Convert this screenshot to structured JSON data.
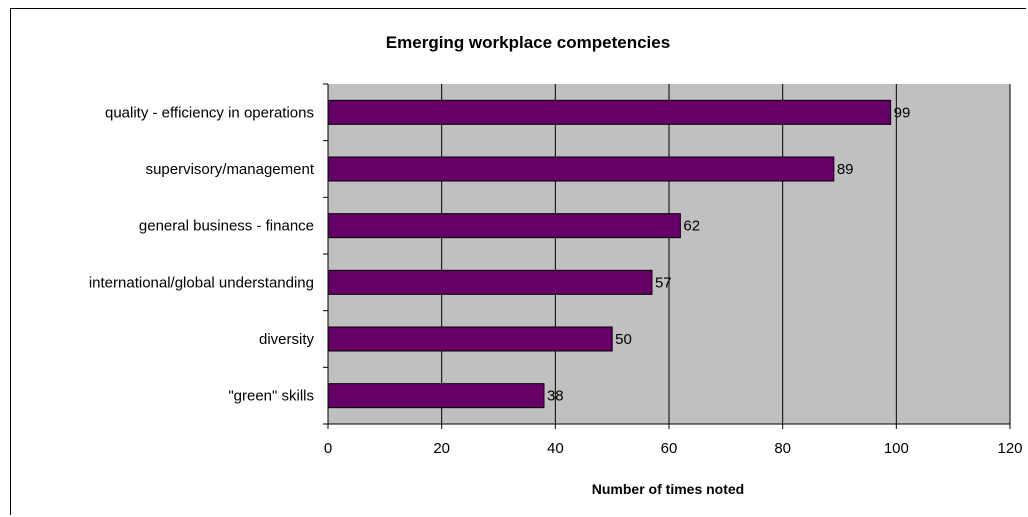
{
  "chart_data": {
    "type": "bar",
    "orientation": "horizontal",
    "title": "Emerging workplace competencies",
    "xlabel": "Number of times  noted",
    "ylabel": "",
    "categories": [
      "quality - efficiency in operations",
      "supervisory/management",
      "general business - finance",
      "international/global understanding",
      "diversity",
      "\"green\" skills"
    ],
    "values": [
      99,
      89,
      62,
      57,
      50,
      38
    ],
    "xlim": [
      0,
      120
    ],
    "xticks": [
      0,
      20,
      40,
      60,
      80,
      100,
      120
    ],
    "grid": true,
    "legend": "none",
    "colors": {
      "bar_fill": "#660066",
      "bar_stroke": "#000000",
      "plot_background": "#c0c0c0",
      "gridline": "#000000"
    }
  }
}
